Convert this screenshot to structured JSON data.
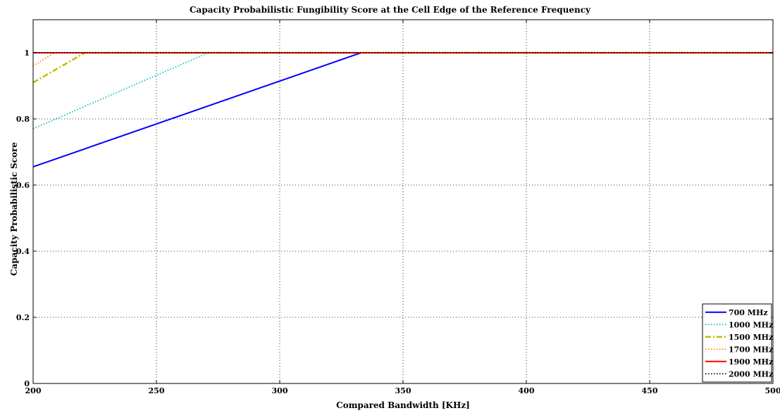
{
  "chart_data": {
    "type": "line",
    "title": "Capacity Probabilistic Fungibility Score at the Cell Edge of the Reference Frequency",
    "xlabel": "Compared Bandwidth [KHz]",
    "ylabel": "Capacity Probabilistic Score",
    "xlim": [
      200,
      500
    ],
    "ylim": [
      0,
      1.1
    ],
    "xticks": [
      200,
      250,
      300,
      350,
      400,
      450,
      500
    ],
    "yticks": [
      0,
      0.2,
      0.4,
      0.6,
      0.8,
      1
    ],
    "ytick_labels": [
      "0",
      "0.2",
      "0.4",
      "0.6",
      "0.8",
      "1"
    ],
    "grid": true,
    "legend_position": "bottom-right",
    "series": [
      {
        "name": "700 MHz",
        "color": "#0000ff",
        "style": "solid",
        "x": [
          200,
          333,
          500
        ],
        "y": [
          0.655,
          1.0,
          1.0
        ]
      },
      {
        "name": "1000 MHz",
        "color": "#00bfbf",
        "style": "dotted",
        "x": [
          200,
          271,
          500
        ],
        "y": [
          0.77,
          1.0,
          1.0
        ]
      },
      {
        "name": "1500 MHz",
        "color": "#bfbf00",
        "style": "dashdot",
        "x": [
          200,
          221,
          500
        ],
        "y": [
          0.91,
          1.0,
          1.0
        ]
      },
      {
        "name": "1700 MHz",
        "color": "#ff7f00",
        "style": "dotted",
        "x": [
          200,
          208.5,
          500
        ],
        "y": [
          0.96,
          1.0,
          1.0
        ]
      },
      {
        "name": "1900 MHz",
        "color": "#ff0000",
        "style": "solid",
        "x": [
          200,
          500
        ],
        "y": [
          1.0,
          1.0
        ]
      },
      {
        "name": "2000 MHz",
        "color": "#000000",
        "style": "dotted",
        "x": [
          200,
          500
        ],
        "y": [
          1.0,
          1.0
        ]
      }
    ]
  }
}
